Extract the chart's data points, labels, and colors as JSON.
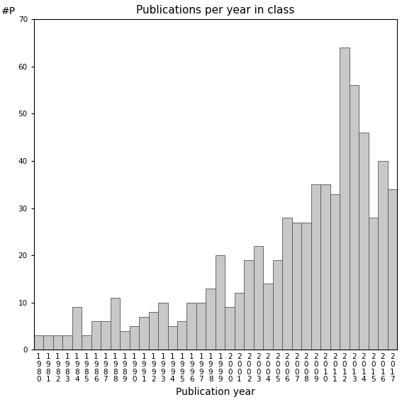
{
  "title": "Publications per year in class",
  "xlabel": "Publication year",
  "ylabel": "#P",
  "ylim": [
    0,
    70
  ],
  "yticks": [
    0,
    10,
    20,
    30,
    40,
    50,
    60,
    70
  ],
  "years": [
    "1980",
    "1981",
    "1982",
    "1983",
    "1984",
    "1985",
    "1986",
    "1987",
    "1988",
    "1989",
    "1990",
    "1991",
    "1992",
    "1993",
    "1994",
    "1995",
    "1996",
    "1997",
    "1998",
    "1999",
    "2000",
    "2001",
    "2002",
    "2003",
    "2004",
    "2005",
    "2006",
    "2007",
    "2008",
    "2009",
    "2010",
    "2011",
    "2012",
    "2013",
    "2014",
    "2015",
    "2016",
    "2017"
  ],
  "values": [
    3,
    3,
    3,
    3,
    9,
    3,
    6,
    6,
    11,
    4,
    5,
    7,
    8,
    10,
    5,
    6,
    10,
    10,
    13,
    20,
    9,
    12,
    19,
    22,
    14,
    19,
    28,
    27,
    27,
    35,
    35,
    33,
    64,
    56,
    46,
    28,
    40,
    34
  ],
  "bar_color": "#c8c8c8",
  "bar_edgecolor": "#555555",
  "bg_color": "#ffffff",
  "title_fontsize": 11,
  "axis_label_fontsize": 10,
  "tick_fontsize": 7.5
}
